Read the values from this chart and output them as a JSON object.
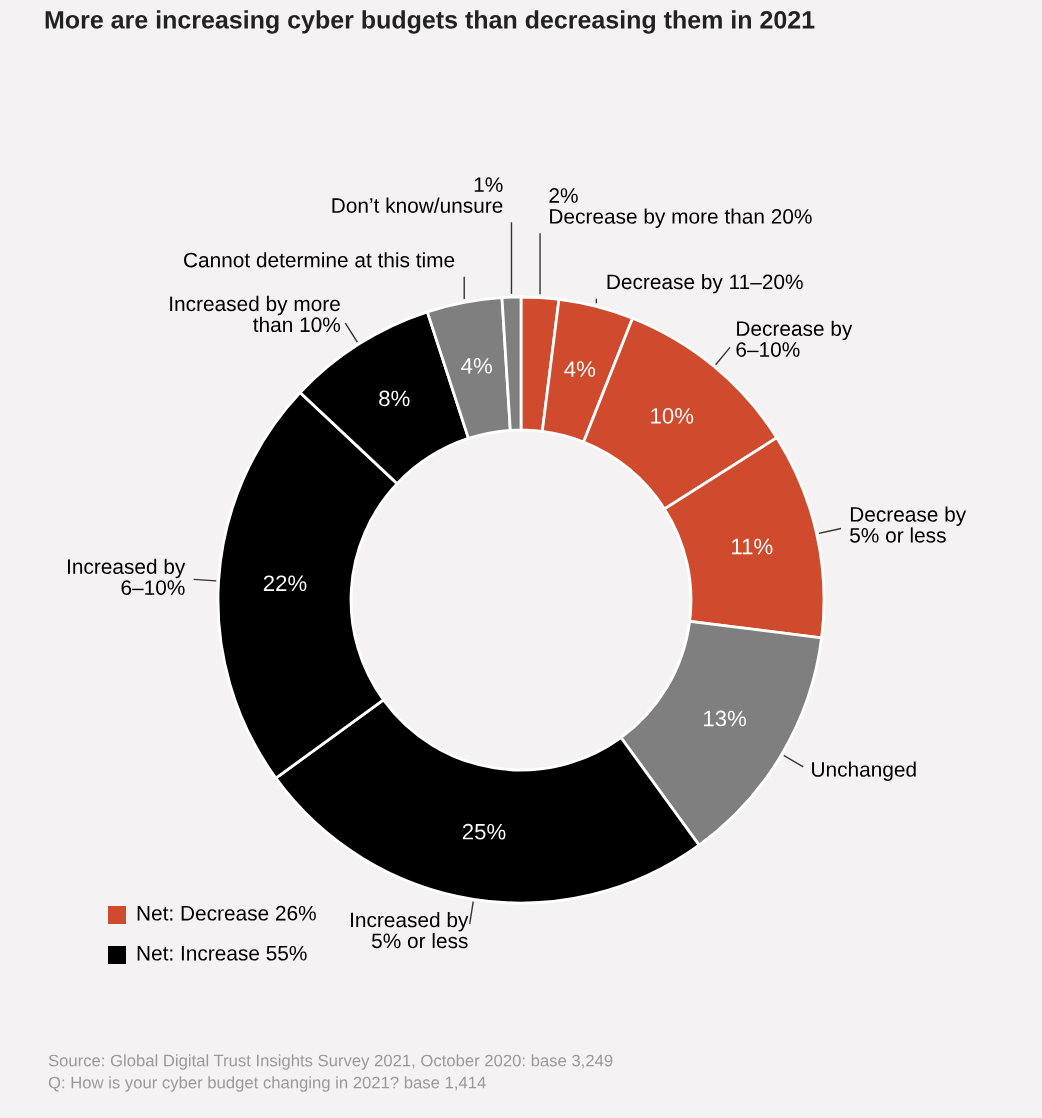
{
  "chart_data": {
    "type": "donut",
    "title": "More are increasing cyber budgets than decreasing them in 2021",
    "categories": [
      "Decrease by more than 20%",
      "Decrease by 11–20%",
      "Decrease by\n6–10%",
      "Decrease by\n5% or less",
      "Unchanged",
      "Increased by\n5% or less",
      "Increased by\n6–10%",
      "Increased by more\nthan 10%",
      "Cannot determine at this time",
      "Don’t know/unsure"
    ],
    "values": [
      2,
      4,
      10,
      11,
      13,
      25,
      22,
      8,
      4,
      1
    ],
    "colors": [
      "#d04a2e",
      "#d04a2e",
      "#d04a2e",
      "#d04a2e",
      "#7f7f7f",
      "#000000",
      "#000000",
      "#000000",
      "#7f7f7f",
      "#7f7f7f"
    ],
    "value_labels": [
      "2%",
      "4%",
      "10%",
      "11%",
      "13%",
      "25%",
      "22%",
      "8%",
      "4%",
      "1%"
    ],
    "annotations": [
      "Net: Decrease 26%",
      "Net: Increase 55%",
      "Source: Global Digital Trust Insights Survey 2021, October 2020: base 3,249",
      "Q: How is your cyber budget changing in 2021? base 1,414"
    ]
  }
}
